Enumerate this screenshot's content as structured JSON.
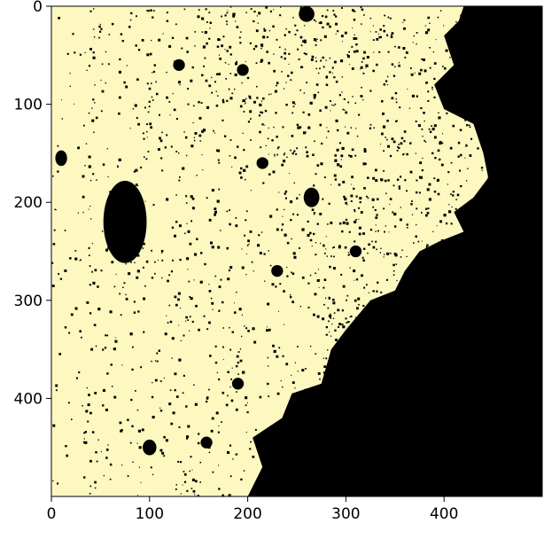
{
  "chart_data": {
    "type": "heatmap",
    "title": "",
    "xlabel": "",
    "ylabel": "",
    "xlim": [
      0,
      500
    ],
    "ylim": [
      500,
      0
    ],
    "xticks": [
      "0",
      "100",
      "200",
      "300",
      "400"
    ],
    "yticks": [
      "0",
      "100",
      "200",
      "300",
      "400"
    ],
    "grid": false,
    "colors": {
      "inside": "#000000",
      "outside": "#fcf8c0"
    },
    "dark_blobs": [
      {
        "x": 75,
        "y": 220,
        "rx": 22,
        "ry": 42
      },
      {
        "x": 260,
        "y": 8,
        "rx": 8,
        "ry": 8
      },
      {
        "x": 130,
        "y": 60,
        "rx": 6,
        "ry": 6
      },
      {
        "x": 195,
        "y": 65,
        "rx": 6,
        "ry": 6
      },
      {
        "x": 10,
        "y": 155,
        "rx": 6,
        "ry": 8
      },
      {
        "x": 215,
        "y": 160,
        "rx": 6,
        "ry": 6
      },
      {
        "x": 265,
        "y": 195,
        "rx": 8,
        "ry": 10
      },
      {
        "x": 100,
        "y": 450,
        "rx": 7,
        "ry": 8
      },
      {
        "x": 158,
        "y": 445,
        "rx": 6,
        "ry": 6
      },
      {
        "x": 230,
        "y": 270,
        "rx": 6,
        "ry": 6
      },
      {
        "x": 190,
        "y": 385,
        "rx": 6,
        "ry": 6
      },
      {
        "x": 310,
        "y": 250,
        "rx": 6,
        "ry": 6
      }
    ]
  }
}
